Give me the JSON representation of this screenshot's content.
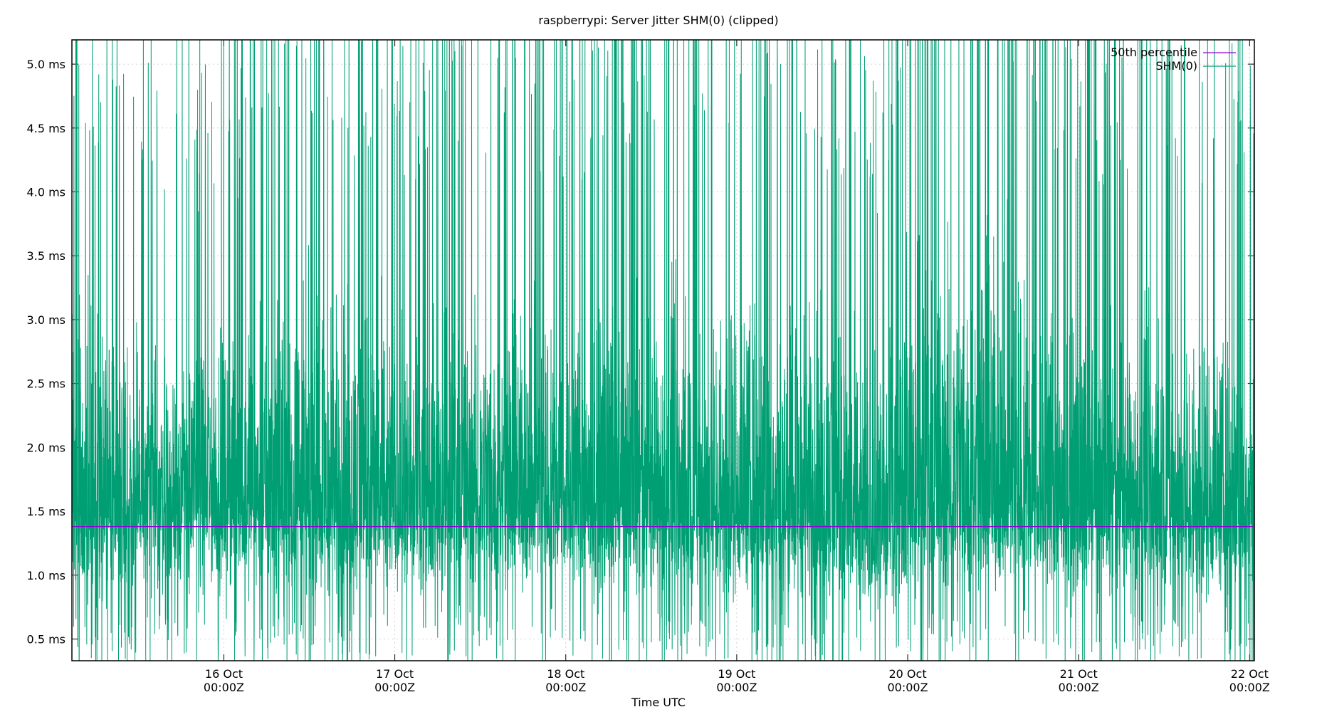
{
  "chart_data": {
    "type": "line",
    "title": "raspberrypi: Server Jitter SHM(0) (clipped)",
    "xlabel": "Time UTC",
    "ylabel": "",
    "xlim": [
      "2023-10-15T02:40Z",
      "2023-10-22T00:40Z"
    ],
    "ylim": [
      0.33,
      5.19
    ],
    "y_unit": "ms",
    "grid": true,
    "legend_position": "top-right",
    "y_ticks": [
      {
        "value": 0.5,
        "label": "0.5 ms"
      },
      {
        "value": 1.0,
        "label": "1.0 ms"
      },
      {
        "value": 1.5,
        "label": "1.5 ms"
      },
      {
        "value": 2.0,
        "label": "2.0 ms"
      },
      {
        "value": 2.5,
        "label": "2.5 ms"
      },
      {
        "value": 3.0,
        "label": "3.0 ms"
      },
      {
        "value": 3.5,
        "label": "3.5 ms"
      },
      {
        "value": 4.0,
        "label": "4.0 ms"
      },
      {
        "value": 4.5,
        "label": "4.5 ms"
      },
      {
        "value": 5.0,
        "label": "5.0 ms"
      }
    ],
    "x_ticks": [
      {
        "value": "2023-10-16T00:00Z",
        "line1": "16 Oct",
        "line2": "00:00Z"
      },
      {
        "value": "2023-10-17T00:00Z",
        "line1": "17 Oct",
        "line2": "00:00Z"
      },
      {
        "value": "2023-10-18T00:00Z",
        "line1": "18 Oct",
        "line2": "00:00Z"
      },
      {
        "value": "2023-10-19T00:00Z",
        "line1": "19 Oct",
        "line2": "00:00Z"
      },
      {
        "value": "2023-10-20T00:00Z",
        "line1": "20 Oct",
        "line2": "00:00Z"
      },
      {
        "value": "2023-10-21T00:00Z",
        "line1": "21 Oct",
        "line2": "00:00Z"
      },
      {
        "value": "2023-10-22T00:00Z",
        "line1": "22 Oct",
        "line2": "00:00Z"
      }
    ],
    "series": [
      {
        "name": "50th percentile",
        "color": "#9400d3",
        "style": "hline",
        "value": 1.38
      },
      {
        "name": "SHM(0)",
        "color": "#009e73",
        "style": "noisy-line",
        "x": [
          "2023-10-15T02:40Z",
          "2023-10-15T12:00Z",
          "2023-10-16T00:00Z",
          "2023-10-16T12:00Z",
          "2023-10-17T00:00Z",
          "2023-10-17T12:00Z",
          "2023-10-18T00:00Z",
          "2023-10-18T12:00Z",
          "2023-10-19T00:00Z",
          "2023-10-19T12:00Z",
          "2023-10-19T19:00Z",
          "2023-10-20T00:00Z",
          "2023-10-20T12:00Z",
          "2023-10-21T00:00Z",
          "2023-10-21T12:00Z",
          "2023-10-22T00:40Z"
        ],
        "low_envelope": [
          0.6,
          0.7,
          0.75,
          0.7,
          0.7,
          0.72,
          0.75,
          0.7,
          0.7,
          0.68,
          0.45,
          0.6,
          0.75,
          0.7,
          0.7,
          0.7
        ],
        "mid_envelope": [
          1.5,
          1.55,
          1.6,
          1.55,
          1.55,
          1.6,
          1.6,
          1.55,
          1.55,
          1.55,
          1.35,
          1.65,
          1.6,
          1.55,
          1.55,
          1.5
        ],
        "high_envelope": [
          4.5,
          3.8,
          3.8,
          4.5,
          4.0,
          4.2,
          4.0,
          4.5,
          4.5,
          4.2,
          3.5,
          5.0,
          5.2,
          4.0,
          4.2,
          3.8
        ]
      }
    ]
  }
}
